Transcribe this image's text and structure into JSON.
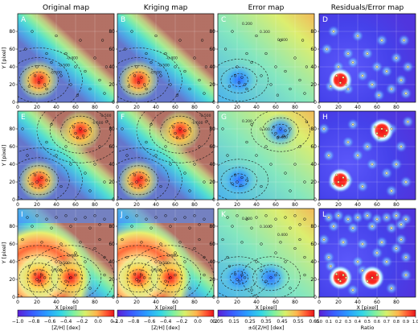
{
  "titles": [
    "Original map",
    "Kriging map",
    "Error map",
    "Residuals/Error map"
  ],
  "panel_letters": [
    [
      "A",
      "B",
      "C",
      "D"
    ],
    [
      "E",
      "F",
      "G",
      "H"
    ],
    [
      "I",
      "J",
      "K",
      "L"
    ]
  ],
  "axes": {
    "xlabel": "X [pixel]",
    "ylabel": "Y [pixel]",
    "xticks": [
      0,
      20,
      40,
      60,
      80
    ],
    "yticks": [
      0,
      20,
      40,
      60,
      80
    ],
    "range": [
      0,
      99
    ]
  },
  "colorbars": [
    {
      "label": "[Z/H] [dex]",
      "ticks": [
        "−1.0",
        "−0.8",
        "−0.6",
        "−0.4",
        "−0.2",
        "0.0",
        "0.2"
      ],
      "colormap": "rainbow"
    },
    {
      "label": "[Z/H] [dex]",
      "ticks": [
        "−1.0",
        "−0.8",
        "−0.6",
        "−0.4",
        "−0.2",
        "0.0",
        "0.2"
      ],
      "colormap": "rainbow"
    },
    {
      "label": "±δ[Z/H] [dex]",
      "ticks": [
        "0.05",
        "0.15",
        "0.25",
        "0.35",
        "0.45",
        "0.55",
        "0.65"
      ],
      "colormap": "rainbow"
    },
    {
      "label": "Ratio",
      "ticks": [
        "0.0",
        "0.1",
        "0.2",
        "0.3",
        "0.4",
        "0.5",
        "0.6",
        "0.7",
        "0.8",
        "0.9",
        "1.0"
      ],
      "colormap": "rainbow"
    }
  ],
  "chart_data": {
    "type": "heatmap",
    "grid": {
      "rows": 3,
      "cols": 4
    },
    "map_size": 100,
    "contour_labels": [
      "-0.600",
      "-0.500",
      "-0.400",
      "-0.300",
      "-0.200"
    ],
    "error_contour_labels": [
      "0.200",
      "0.300",
      "0.400"
    ],
    "rows": [
      {
        "peaks": [
          {
            "x": 22,
            "y": 25,
            "value": 0.25
          }
        ],
        "sample_points": [
          [
            12,
            18
          ],
          [
            18,
            30
          ],
          [
            22,
            22
          ],
          [
            25,
            28
          ],
          [
            28,
            20
          ],
          [
            30,
            15
          ],
          [
            35,
            45
          ],
          [
            8,
            60
          ],
          [
            45,
            30
          ],
          [
            55,
            20
          ],
          [
            60,
            40
          ],
          [
            70,
            35
          ],
          [
            75,
            15
          ],
          [
            80,
            50
          ],
          [
            85,
            25
          ],
          [
            90,
            10
          ],
          [
            15,
            80
          ],
          [
            40,
            75
          ],
          [
            65,
            70
          ],
          [
            88,
            70
          ],
          [
            50,
            55
          ],
          [
            30,
            55
          ],
          [
            20,
            40
          ],
          [
            92,
            40
          ],
          [
            62,
            8
          ]
        ]
      },
      {
        "peaks": [
          {
            "x": 65,
            "y": 78,
            "value": 0.25
          },
          {
            "x": 22,
            "y": 22,
            "value": 0.0
          }
        ],
        "sample_points": [
          [
            60,
            75
          ],
          [
            65,
            80
          ],
          [
            70,
            78
          ],
          [
            68,
            72
          ],
          [
            58,
            82
          ],
          [
            75,
            80
          ],
          [
            62,
            70
          ],
          [
            20,
            20
          ],
          [
            25,
            25
          ],
          [
            18,
            28
          ],
          [
            24,
            16
          ],
          [
            30,
            22
          ],
          [
            15,
            18
          ],
          [
            10,
            50
          ],
          [
            40,
            50
          ],
          [
            50,
            60
          ],
          [
            80,
            40
          ],
          [
            90,
            20
          ],
          [
            45,
            15
          ],
          [
            70,
            30
          ],
          [
            85,
            60
          ],
          [
            35,
            85
          ],
          [
            5,
            80
          ],
          [
            55,
            40
          ],
          [
            92,
            88
          ],
          [
            30,
            65
          ],
          [
            75,
            10
          ]
        ]
      },
      {
        "peaks": [
          {
            "x": 22,
            "y": 22,
            "value": 0.25
          },
          {
            "x": 55,
            "y": 22,
            "value": 0.2
          }
        ],
        "sample_points": [
          [
            10,
            90
          ],
          [
            20,
            92
          ],
          [
            30,
            88
          ],
          [
            40,
            90
          ],
          [
            50,
            92
          ],
          [
            60,
            88
          ],
          [
            70,
            90
          ],
          [
            80,
            92
          ],
          [
            90,
            88
          ],
          [
            15,
            80
          ],
          [
            35,
            78
          ],
          [
            55,
            80
          ],
          [
            75,
            78
          ],
          [
            85,
            82
          ],
          [
            5,
            65
          ],
          [
            25,
            62
          ],
          [
            45,
            60
          ],
          [
            65,
            62
          ],
          [
            85,
            65
          ],
          [
            20,
            20
          ],
          [
            25,
            25
          ],
          [
            22,
            18
          ],
          [
            28,
            22
          ],
          [
            18,
            26
          ],
          [
            55,
            22
          ],
          [
            60,
            25
          ],
          [
            50,
            18
          ],
          [
            10,
            45
          ],
          [
            40,
            40
          ],
          [
            70,
            40
          ],
          [
            90,
            45
          ],
          [
            35,
            8
          ],
          [
            75,
            10
          ],
          [
            90,
            25
          ],
          [
            60,
            50
          ],
          [
            45,
            30
          ],
          [
            80,
            55
          ],
          [
            12,
            35
          ]
        ]
      }
    ]
  }
}
